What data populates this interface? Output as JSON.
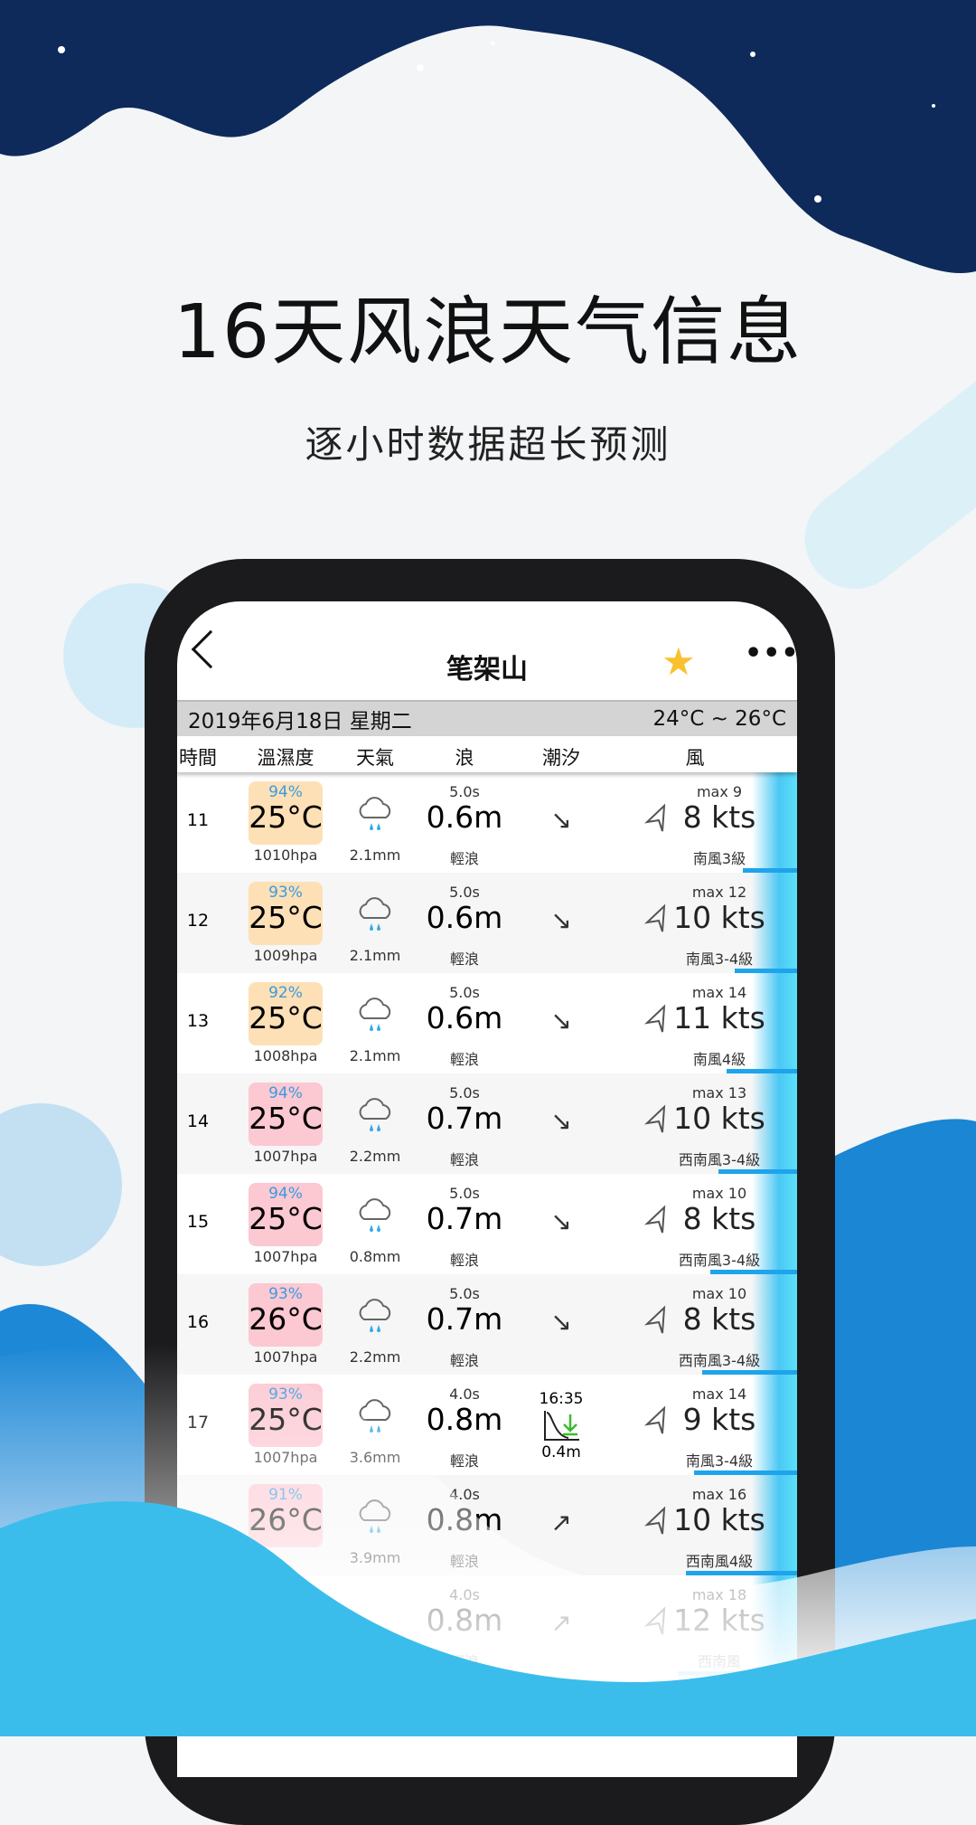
{
  "headline": "16天风浪天气信息",
  "subheadline": "逐小时数据超长预测",
  "colors": {
    "navy": "#0e2a5a",
    "ocean": "#3bbdeb",
    "orange_box": "#fde0b6",
    "pink_box": "#fcc8d2",
    "humidity": "#3b9be0"
  },
  "nav": {
    "back_icon": "chevron-left",
    "title": "笔架山",
    "favorite_icon": "star",
    "more_label": "•••"
  },
  "date_bar": {
    "date": "2019年6月18日 星期二",
    "range": "24°C ~ 26°C"
  },
  "columns": [
    "時間",
    "溫濕度",
    "天氣",
    "浪",
    "潮汐",
    "風"
  ],
  "rows": [
    {
      "time": "11",
      "humidity": "94%",
      "temp": "25°C",
      "pressure": "1010hpa",
      "rain": "2.1mm",
      "period": "5.0s",
      "wave": "0.6m",
      "wave_desc": "輕浪",
      "tide_arrow": "↘",
      "max": "max 9",
      "kts": "8 kts",
      "wind_desc": "南風3級",
      "box": "orange"
    },
    {
      "time": "12",
      "humidity": "93%",
      "temp": "25°C",
      "pressure": "1009hpa",
      "rain": "2.1mm",
      "period": "5.0s",
      "wave": "0.6m",
      "wave_desc": "輕浪",
      "tide_arrow": "↘",
      "max": "max 12",
      "kts": "10 kts",
      "wind_desc": "南風3-4級",
      "box": "orange"
    },
    {
      "time": "13",
      "humidity": "92%",
      "temp": "25°C",
      "pressure": "1008hpa",
      "rain": "2.1mm",
      "period": "5.0s",
      "wave": "0.6m",
      "wave_desc": "輕浪",
      "tide_arrow": "↘",
      "max": "max 14",
      "kts": "11 kts",
      "wind_desc": "南風4級",
      "box": "orange"
    },
    {
      "time": "14",
      "humidity": "94%",
      "temp": "25°C",
      "pressure": "1007hpa",
      "rain": "2.2mm",
      "period": "5.0s",
      "wave": "0.7m",
      "wave_desc": "輕浪",
      "tide_arrow": "↘",
      "max": "max 13",
      "kts": "10 kts",
      "wind_desc": "西南風3-4級",
      "box": "pink"
    },
    {
      "time": "15",
      "humidity": "94%",
      "temp": "25°C",
      "pressure": "1007hpa",
      "rain": "0.8mm",
      "period": "5.0s",
      "wave": "0.7m",
      "wave_desc": "輕浪",
      "tide_arrow": "↘",
      "max": "max 10",
      "kts": "8 kts",
      "wind_desc": "西南風3-4級",
      "box": "pink"
    },
    {
      "time": "16",
      "humidity": "93%",
      "temp": "26°C",
      "pressure": "1007hpa",
      "rain": "2.2mm",
      "period": "5.0s",
      "wave": "0.7m",
      "wave_desc": "輕浪",
      "tide_arrow": "↘",
      "max": "max 10",
      "kts": "8 kts",
      "wind_desc": "西南風3-4級",
      "box": "pink"
    },
    {
      "time": "17",
      "humidity": "93%",
      "temp": "25°C",
      "pressure": "1007hpa",
      "rain": "3.6mm",
      "period": "4.0s",
      "wave": "0.8m",
      "wave_desc": "輕浪",
      "tide_time": "16:35",
      "tide_height": "0.4m",
      "max": "max 14",
      "kts": "9 kts",
      "wind_desc": "南風3-4級",
      "box": "pink"
    },
    {
      "time": "",
      "humidity": "91%",
      "temp": "26°C",
      "pressure": "",
      "rain": "3.9mm",
      "period": "4.0s",
      "wave": "0.8m",
      "wave_desc": "輕浪",
      "tide_arrow": "↗",
      "max": "max 16",
      "kts": "10 kts",
      "wind_desc": "西南風4級",
      "box": "pink"
    },
    {
      "time": "",
      "humidity": "",
      "temp": "",
      "pressure": "",
      "rain": "",
      "period": "4.0s",
      "wave": "0.8m",
      "wave_desc": "輕浪",
      "tide_arrow": "↗",
      "max": "max 18",
      "kts": "12 kts",
      "wind_desc": "西南風",
      "box": ""
    }
  ]
}
